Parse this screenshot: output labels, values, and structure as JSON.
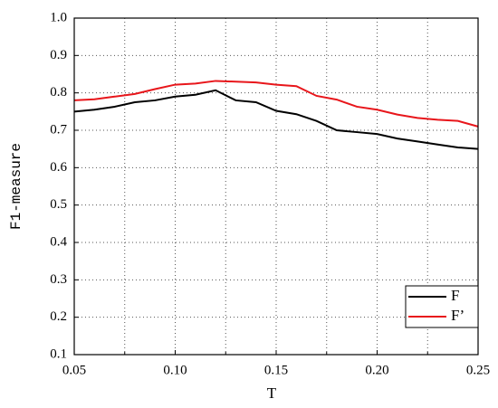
{
  "chart_data": {
    "type": "line",
    "x_label": "T",
    "y_label": "F1-measure",
    "x": [
      0.05,
      0.06,
      0.07,
      0.08,
      0.09,
      0.1,
      0.11,
      0.12,
      0.13,
      0.14,
      0.15,
      0.16,
      0.17,
      0.18,
      0.19,
      0.2,
      0.21,
      0.22,
      0.23,
      0.24,
      0.25
    ],
    "series": [
      {
        "name": "F",
        "color": "#000000",
        "values": [
          0.75,
          0.755,
          0.763,
          0.775,
          0.78,
          0.79,
          0.795,
          0.807,
          0.78,
          0.775,
          0.752,
          0.743,
          0.725,
          0.7,
          0.695,
          0.69,
          0.678,
          0.67,
          0.662,
          0.654,
          0.65
        ]
      },
      {
        "name": "F’",
        "color": "#e8161b",
        "values": [
          0.78,
          0.783,
          0.79,
          0.797,
          0.81,
          0.822,
          0.825,
          0.832,
          0.83,
          0.828,
          0.822,
          0.818,
          0.792,
          0.782,
          0.763,
          0.755,
          0.742,
          0.733,
          0.728,
          0.725,
          0.71
        ]
      }
    ],
    "xlim": [
      0.05,
      0.25
    ],
    "xticks": [
      0.05,
      {
        "value": 0.1,
        "label": "0.10"
      },
      0.15,
      {
        "value": 0.2,
        "label": "0.20"
      },
      0.25
    ],
    "x_minor_ticks": [
      0.075,
      0.125,
      0.175,
      0.225
    ],
    "ylim": [
      0.1,
      1.0
    ],
    "yticks": [
      0.1,
      0.2,
      0.3,
      0.4,
      0.5,
      0.6,
      0.7,
      0.8,
      0.9,
      {
        "value": 1.0,
        "label": "1.0"
      }
    ],
    "grid": true,
    "legend": "lower right"
  }
}
